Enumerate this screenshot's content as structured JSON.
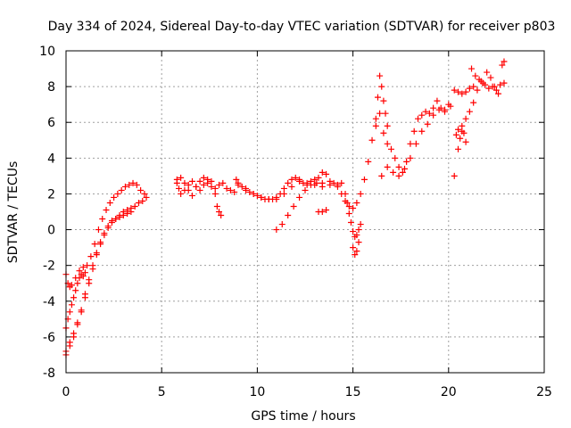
{
  "chart_data": {
    "type": "scatter",
    "title": "Day 334 of 2024, Sidereal Day-to-day VTEC variation (SDTVAR) for receiver p803",
    "xlabel": "GPS time / hours",
    "ylabel": "SDTVAR / TECUs",
    "xlim": [
      0,
      25
    ],
    "ylim": [
      -8,
      10
    ],
    "xticks": [
      "0",
      "5",
      "10",
      "15",
      "20",
      "25"
    ],
    "yticks": [
      "-8",
      "-6",
      "-4",
      "-2",
      "0",
      "2",
      "4",
      "6",
      "8",
      "10"
    ],
    "grid": true,
    "marker": "+",
    "color": "#ff0000",
    "series": [
      {
        "name": "p803",
        "x": [
          0.0,
          0.1,
          0.2,
          0.3,
          0.5,
          0.7,
          0.9,
          1.1,
          1.3,
          1.5,
          1.7,
          1.9,
          2.1,
          2.3,
          2.5,
          2.7,
          2.9,
          3.1,
          3.3,
          3.5,
          3.7,
          3.9,
          4.1,
          4.2,
          0.0,
          0.2,
          0.4,
          0.6,
          0.8,
          1.0,
          1.2,
          1.4,
          1.6,
          1.8,
          2.0,
          2.2,
          2.4,
          2.6,
          2.8,
          3.0,
          3.2,
          3.4,
          3.6,
          3.8,
          4.0,
          0.0,
          0.2,
          0.4,
          0.6,
          0.8,
          1.0,
          1.2,
          1.4,
          1.6,
          1.8,
          2.0,
          2.2,
          2.4,
          2.6,
          2.8,
          3.0,
          3.2,
          3.4,
          0.0,
          0.1,
          0.2,
          0.3,
          0.4,
          0.5,
          0.6,
          0.7,
          0.8,
          0.9,
          1.0,
          5.8,
          5.9,
          6.0,
          6.2,
          6.4,
          6.6,
          6.8,
          7.0,
          7.2,
          7.4,
          7.6,
          7.8,
          8.0,
          8.2,
          8.4,
          8.6,
          8.8,
          5.8,
          6.0,
          6.2,
          6.4,
          6.6,
          6.8,
          7.0,
          7.2,
          7.4,
          7.6,
          7.8,
          7.9,
          8.0,
          8.1,
          8.9,
          9.0,
          9.2,
          9.4,
          9.6,
          9.8,
          10.0,
          10.2,
          10.4,
          10.6,
          10.8,
          11.0,
          11.2,
          11.4,
          11.6,
          11.8,
          12.0,
          12.2,
          12.4,
          12.6,
          12.8,
          13.0,
          13.2,
          13.4,
          13.6,
          13.8,
          14.0,
          14.2,
          14.4,
          9.0,
          9.4,
          9.8,
          10.2,
          10.6,
          11.0,
          11.4,
          11.8,
          12.2,
          12.6,
          13.0,
          13.4,
          13.8,
          14.2,
          11.0,
          11.3,
          11.6,
          11.9,
          12.2,
          12.5,
          12.8,
          13.1,
          13.4,
          13.2,
          13.4,
          13.6,
          14.4,
          14.6,
          14.8,
          15.0,
          15.2,
          15.4,
          15.6,
          15.8,
          16.0,
          16.2,
          16.4,
          16.6,
          16.8,
          17.0,
          17.2,
          17.4,
          17.6,
          17.8,
          18.0,
          18.2,
          18.4,
          18.6,
          18.8,
          19.0,
          19.2,
          19.4,
          19.6,
          19.8,
          20.0,
          14.6,
          14.7,
          14.8,
          14.9,
          15.0,
          15.1,
          15.2,
          15.3,
          15.4,
          15.0,
          15.1,
          15.2,
          15.3,
          16.2,
          16.3,
          16.4,
          16.5,
          16.6,
          16.7,
          16.8,
          16.5,
          16.8,
          17.1,
          17.4,
          17.7,
          18.0,
          18.3,
          18.6,
          18.9,
          19.2,
          19.5,
          19.8,
          20.1,
          20.3,
          20.5,
          20.7,
          20.9,
          21.1,
          21.3,
          21.5,
          21.7,
          21.9,
          22.1,
          22.3,
          22.5,
          22.7,
          22.9,
          20.3,
          20.5,
          20.7,
          20.9,
          21.1,
          21.3,
          20.4,
          20.5,
          20.6,
          20.7,
          20.8,
          20.9,
          21.2,
          21.4,
          21.6,
          21.8,
          22.0,
          22.2,
          22.4,
          22.6,
          22.8,
          22.9
        ],
        "y": [
          -2.5,
          -3.0,
          -3.2,
          -3.1,
          -2.7,
          -2.3,
          -2.1,
          -2.0,
          -1.5,
          -0.8,
          0.0,
          0.6,
          1.1,
          1.5,
          1.8,
          2.0,
          2.2,
          2.4,
          2.5,
          2.6,
          2.5,
          2.2,
          2.0,
          1.8,
          -7.0,
          -6.5,
          -6.0,
          -5.3,
          -4.6,
          -3.8,
          -3.0,
          -2.2,
          -1.4,
          -0.8,
          -0.3,
          0.1,
          0.4,
          0.6,
          0.8,
          1.0,
          1.1,
          1.2,
          1.3,
          1.5,
          1.6,
          -6.8,
          -6.3,
          -5.8,
          -5.2,
          -4.5,
          -3.6,
          -2.8,
          -2.0,
          -1.3,
          -0.7,
          -0.2,
          0.2,
          0.5,
          0.6,
          0.7,
          0.8,
          0.9,
          1.0,
          -5.5,
          -5.0,
          -4.6,
          -4.2,
          -3.8,
          -3.4,
          -3.0,
          -2.7,
          -2.5,
          -2.6,
          -2.4,
          2.6,
          2.3,
          2.0,
          2.2,
          2.5,
          2.7,
          2.4,
          2.2,
          2.5,
          2.6,
          2.7,
          2.3,
          2.5,
          2.6,
          2.3,
          2.2,
          2.1,
          2.8,
          2.9,
          2.6,
          2.2,
          1.9,
          2.4,
          2.7,
          2.9,
          2.8,
          2.4,
          2.0,
          1.3,
          1.0,
          0.8,
          2.8,
          2.6,
          2.4,
          2.2,
          2.1,
          2.0,
          1.9,
          1.8,
          1.7,
          1.7,
          1.7,
          1.8,
          2.0,
          2.3,
          2.6,
          2.8,
          2.9,
          2.8,
          2.6,
          2.5,
          2.7,
          2.8,
          2.9,
          3.2,
          3.1,
          2.7,
          2.6,
          2.5,
          2.6,
          2.5,
          2.3,
          2.0,
          1.8,
          1.7,
          1.7,
          2.0,
          2.4,
          2.7,
          2.6,
          2.5,
          2.4,
          2.5,
          2.4,
          0.0,
          0.3,
          0.8,
          1.3,
          1.8,
          2.2,
          2.5,
          2.6,
          2.6,
          1.0,
          1.0,
          1.1,
          2.0,
          1.6,
          1.3,
          1.2,
          1.5,
          2.0,
          2.8,
          3.8,
          5.0,
          5.8,
          6.5,
          5.4,
          4.8,
          4.5,
          4.0,
          3.5,
          3.2,
          3.8,
          4.8,
          5.5,
          6.2,
          6.4,
          6.6,
          6.5,
          6.8,
          7.2,
          6.8,
          6.7,
          7.0,
          2.0,
          1.5,
          0.9,
          0.4,
          -0.1,
          -0.4,
          -0.3,
          0.0,
          0.3,
          -1.0,
          -1.4,
          -1.2,
          -0.7,
          6.2,
          7.4,
          8.6,
          8.0,
          7.2,
          6.5,
          5.8,
          3.0,
          3.5,
          3.2,
          3.0,
          3.4,
          4.0,
          4.8,
          5.5,
          5.9,
          6.4,
          6.7,
          6.6,
          6.9,
          7.8,
          7.7,
          7.6,
          7.7,
          7.9,
          8.0,
          7.8,
          8.3,
          8.1,
          7.9,
          8.0,
          7.8,
          8.1,
          8.2,
          3.0,
          4.5,
          5.5,
          6.2,
          6.6,
          7.1,
          5.3,
          5.6,
          5.1,
          5.8,
          5.4,
          4.9,
          9.0,
          8.6,
          8.4,
          8.2,
          8.8,
          8.5,
          8.0,
          7.6,
          9.2,
          9.4
        ]
      }
    ]
  }
}
